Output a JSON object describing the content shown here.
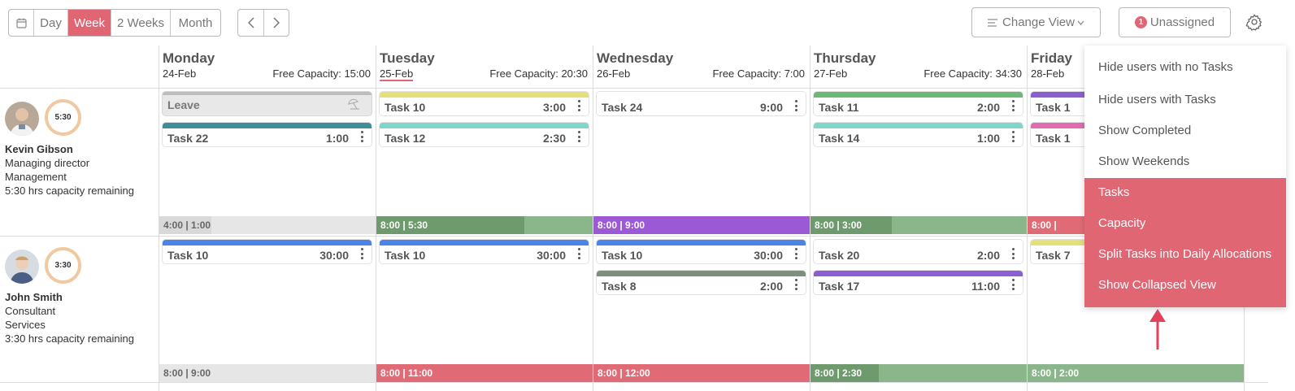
{
  "toolbar": {
    "view_tabs": [
      "Day",
      "Week",
      "2 Weeks",
      "Month"
    ],
    "active_view": "Week",
    "change_view_label": "Change View",
    "unassigned_label": "Unassigned",
    "unassigned_count": "1"
  },
  "days": [
    {
      "name": "Monday",
      "date": "24-Feb",
      "capacity": "Free Capacity: 15:00"
    },
    {
      "name": "Tuesday",
      "date": "25-Feb",
      "capacity": "Free Capacity: 20:30"
    },
    {
      "name": "Wednesday",
      "date": "26-Feb",
      "capacity": "Free Capacity: 7:00"
    },
    {
      "name": "Thursday",
      "date": "27-Feb",
      "capacity": "Free Capacity: 34:30"
    },
    {
      "name": "Friday",
      "date": "28-Feb",
      "capacity": ""
    }
  ],
  "users": [
    {
      "name": "Kevin Gibson",
      "ring": "5:30",
      "role": "Managing director",
      "dept": "Management",
      "remaining": "5:30 hrs capacity remaining",
      "leave_label": "Leave",
      "tasks": {
        "mon": [
          {
            "name": "Task 22",
            "time": "1:00",
            "color": "#3f8c9a"
          }
        ],
        "tue": [
          {
            "name": "Task 10",
            "time": "3:00",
            "color": "#e6e07a"
          },
          {
            "name": "Task 12",
            "time": "2:30",
            "color": "#7fd6c9"
          }
        ],
        "wed": [
          {
            "name": "Task 24",
            "time": "9:00",
            "color": "#ffffff"
          }
        ],
        "thu": [
          {
            "name": "Task 11",
            "time": "2:00",
            "color": "#6bb877"
          },
          {
            "name": "Task 14",
            "time": "1:00",
            "color": "#7fd6c9"
          }
        ],
        "fri": [
          {
            "name": "Task 1",
            "time": "",
            "color": "#8c5fd1"
          },
          {
            "name": "Task 1",
            "time": "",
            "color": "#e06db0"
          }
        ]
      },
      "capacity": [
        "4:00 | 1:00",
        "8:00 | 5:30",
        "8:00 | 9:00",
        "8:00 | 3:00",
        "8:00 | "
      ]
    },
    {
      "name": "John Smith",
      "ring": "3:30",
      "role": "Consultant",
      "dept": "Services",
      "remaining": "3:30 hrs capacity remaining",
      "tasks": {
        "mon": [
          {
            "name": "Task 10",
            "time": "30:00",
            "color": "#4a84e6"
          }
        ],
        "tue": [
          {
            "name": "Task 10",
            "time": "30:00",
            "color": "#4a84e6"
          }
        ],
        "wed": [
          {
            "name": "Task 10",
            "time": "30:00",
            "color": "#4a84e6"
          },
          {
            "name": "Task 8",
            "time": "2:00",
            "color": "#7d8f7d"
          }
        ],
        "thu": [
          {
            "name": "Task 20",
            "time": "2:00",
            "color": "#ffffff"
          },
          {
            "name": "Task 17",
            "time": "11:00",
            "color": "#8c5fd1"
          }
        ],
        "fri": [
          {
            "name": "Task 7",
            "time": "",
            "color": "#e6e07a"
          }
        ]
      },
      "capacity": [
        "8:00 | 9:00",
        "8:00 | 11:00",
        "8:00 | 12:00",
        "8:00 | 2:30",
        "8:00 | 2:00"
      ]
    }
  ],
  "settings_menu": {
    "items": [
      "Hide users with no Tasks",
      "Hide users with Tasks",
      "Show Completed",
      "Show Weekends"
    ],
    "selected_items": [
      "Tasks",
      "Capacity",
      "Split Tasks into Daily Allocations",
      "Show Collapsed View"
    ]
  },
  "colors": {
    "accent": "#e16674",
    "capacity_green_dark": "#6e9a6e",
    "capacity_green_light": "#8bb58b",
    "capacity_purple": "#9b59d6",
    "capacity_red": "#e06b76",
    "capacity_grey": "#e6e6e6"
  }
}
